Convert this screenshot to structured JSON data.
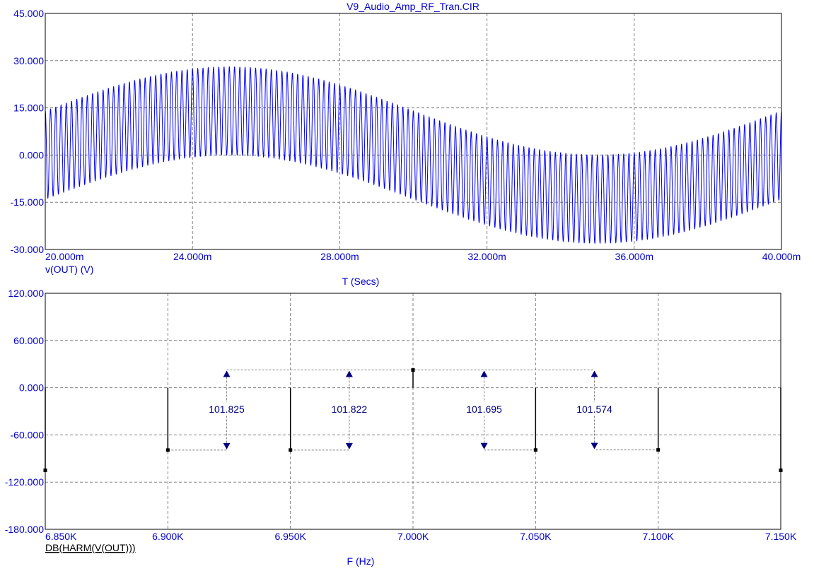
{
  "title": "V9_Audio_Amp_RF_Tran.CIR",
  "colors": {
    "frame": "#000000",
    "grid": "#808080",
    "label": "#0000cc",
    "trace": "#0000ff",
    "stem": "#000000",
    "cursor": "#000080"
  },
  "chart_data": [
    {
      "type": "line",
      "title": "V9_Audio_Amp_RF_Tran.CIR",
      "xlabel": "T (Secs)",
      "ylabel": "v(OUT) (V)",
      "xlim": [
        0.02,
        0.04
      ],
      "ylim": [
        -30,
        45
      ],
      "x_tick_labels": [
        "20.000m",
        "24.000m",
        "28.000m",
        "32.000m",
        "36.000m",
        "40.000m"
      ],
      "x_ticks": [
        0.02,
        0.024,
        0.028,
        0.032,
        0.036,
        0.04
      ],
      "y_tick_labels": [
        "45.000",
        "30.000",
        "15.000",
        "0.000",
        "-15.000",
        "-30.000"
      ],
      "y_ticks": [
        45,
        30,
        15,
        0,
        -15,
        -30
      ],
      "grid": true,
      "series": [
        {
          "name": "v(OUT) (V)",
          "signal": {
            "audio_frequency_hz": 50,
            "audio_amplitude": 14,
            "audio_peak_time": 0.025,
            "carrier_frequency_hz": 7000,
            "carrier_amplitude": 14
          }
        }
      ]
    },
    {
      "type": "bar",
      "xlabel": "F (Hz)",
      "ylabel": "DB(HARM(V(OUT)))",
      "xlim": [
        6850,
        7150
      ],
      "ylim": [
        -180,
        120
      ],
      "x_tick_labels": [
        "6.850K",
        "6.900K",
        "6.950K",
        "7.000K",
        "7.050K",
        "7.100K",
        "7.150K"
      ],
      "x_ticks": [
        6850,
        6900,
        6950,
        7000,
        7050,
        7100,
        7150
      ],
      "y_tick_labels": [
        "120.000",
        "60.000",
        "0.000",
        "-60.000",
        "-120.000",
        "-180.000"
      ],
      "y_ticks": [
        120,
        60,
        0,
        -60,
        -120,
        -180
      ],
      "grid": true,
      "series": [
        {
          "name": "DB(HARM(V(OUT)))",
          "x": [
            6850,
            6900,
            6950,
            7000,
            7050,
            7100,
            7150
          ],
          "values": [
            -105,
            -79.3,
            -79.3,
            22.5,
            -79.2,
            -79.1,
            -105
          ]
        }
      ],
      "annotations": [
        {
          "label": "101.825",
          "x_from": 6900,
          "x_at": 6924,
          "y_top": 22.5,
          "y_bottom": -79.3
        },
        {
          "label": "101.822",
          "x_from": 6950,
          "x_at": 6974,
          "y_top": 22.5,
          "y_bottom": -79.3
        },
        {
          "label": "101.695",
          "x_from": 7050,
          "x_at": 7029,
          "y_top": 22.5,
          "y_bottom": -79.2
        },
        {
          "label": "101.574",
          "x_from": 7100,
          "x_at": 7074,
          "y_top": 22.5,
          "y_bottom": -79.1
        }
      ]
    }
  ]
}
